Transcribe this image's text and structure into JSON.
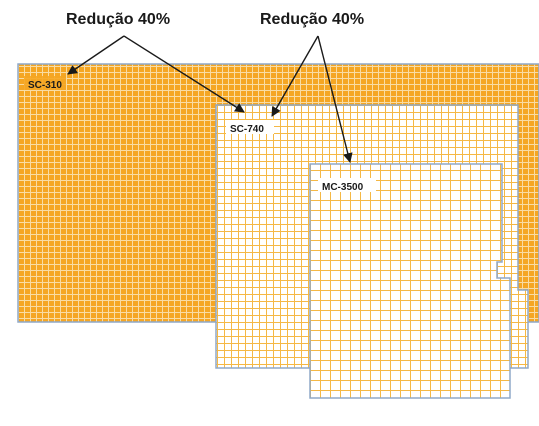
{
  "callouts": [
    {
      "text": "Redução 40%"
    },
    {
      "text": "Redução 40%"
    }
  ],
  "panels": [
    {
      "label": "SC-310",
      "fill": "#f5a623",
      "line": "#f7d79a",
      "density": "fine"
    },
    {
      "label": "SC-740",
      "fill": "#ffffff",
      "line": "#f5b845",
      "density": "medium"
    },
    {
      "label": "MC-3500",
      "fill": "#ffffff",
      "line": "#f5b845",
      "density": "coarse"
    }
  ],
  "colors": {
    "outline": "#8fa8c8",
    "arrow": "#1a1a1a"
  }
}
